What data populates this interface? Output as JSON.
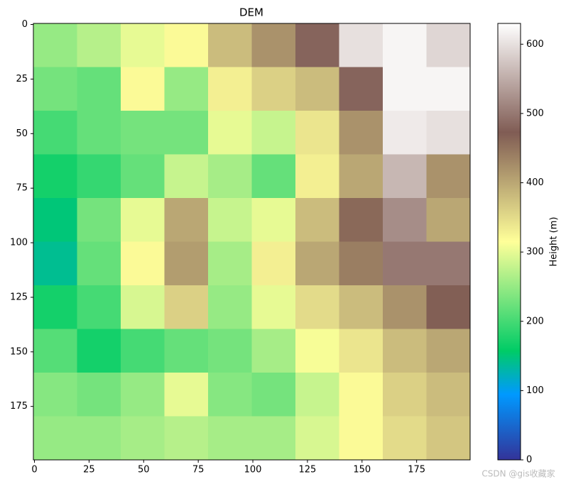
{
  "chart_data": {
    "type": "heatmap",
    "title": "DEM",
    "x_bins": [
      0,
      20,
      40,
      60,
      80,
      100,
      120,
      140,
      160,
      180,
      200
    ],
    "y_bins": [
      0,
      20,
      40,
      60,
      80,
      100,
      120,
      140,
      160,
      180,
      200
    ],
    "values": [
      [
        250,
        270,
        300,
        320,
        380,
        420,
        480,
        600,
        620,
        590
      ],
      [
        230,
        220,
        320,
        250,
        330,
        360,
        380,
        480,
        620,
        620
      ],
      [
        200,
        220,
        230,
        230,
        300,
        280,
        340,
        420,
        610,
        600
      ],
      [
        170,
        190,
        220,
        280,
        260,
        220,
        330,
        400,
        560,
        420
      ],
      [
        150,
        230,
        300,
        400,
        280,
        300,
        380,
        460,
        520,
        400
      ],
      [
        140,
        220,
        320,
        410,
        260,
        330,
        400,
        440,
        500,
        500
      ],
      [
        170,
        200,
        290,
        360,
        250,
        300,
        350,
        380,
        420,
        470
      ],
      [
        210,
        170,
        200,
        220,
        230,
        260,
        310,
        340,
        380,
        400
      ],
      [
        240,
        230,
        250,
        300,
        240,
        230,
        280,
        320,
        360,
        380
      ],
      [
        250,
        250,
        260,
        270,
        260,
        260,
        290,
        320,
        350,
        370
      ]
    ],
    "xlim": [
      -0.5,
      199.5
    ],
    "ylim": [
      199.5,
      -0.5
    ],
    "xticks": [
      0,
      25,
      50,
      75,
      100,
      125,
      150,
      175
    ],
    "yticks": [
      0,
      25,
      50,
      75,
      100,
      125,
      150,
      175
    ],
    "clim": [
      0,
      630
    ],
    "cticks": [
      0,
      100,
      200,
      300,
      400,
      500,
      600
    ],
    "colorbar_label": "Height (m)",
    "colormap": [
      [
        0,
        "#333399"
      ],
      [
        0.15,
        "#0099ff"
      ],
      [
        0.25,
        "#00cc66"
      ],
      [
        0.5,
        "#ffff99"
      ],
      [
        0.75,
        "#805c54"
      ],
      [
        1,
        "#ffffff"
      ]
    ],
    "watermark": "CSDN @gis收藏家"
  }
}
